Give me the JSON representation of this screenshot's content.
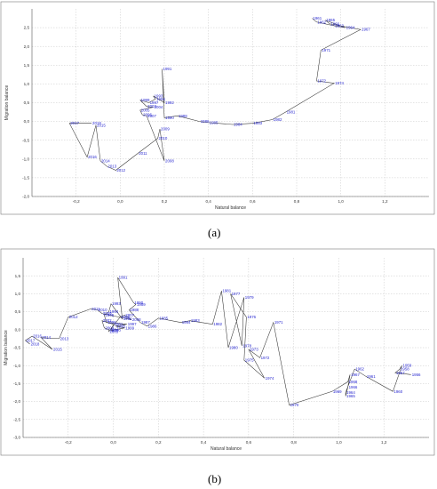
{
  "labels": {
    "a": "(a)",
    "b": "(b)"
  },
  "chart_data": [
    {
      "type": "line",
      "panel": "a",
      "xlabel": "Natural balance",
      "ylabel": "Migration balance",
      "xlim": [
        -0.4,
        1.4
      ],
      "ylim": [
        -2.0,
        3.0
      ],
      "xticks": [
        -0.2,
        0.0,
        0.2,
        0.4,
        0.6,
        0.8,
        1.0,
        1.2
      ],
      "xtick_labels": [
        "-0,2",
        "0,0",
        "0,2",
        "0,4",
        "0,6",
        "0,8",
        "1,0",
        "1,2"
      ],
      "yticks": [
        -2.0,
        -1.5,
        -1.0,
        -0.5,
        0.0,
        0.5,
        1.0,
        1.5,
        2.0,
        2.5
      ],
      "ytick_labels": [
        "-2,0",
        "-1,5",
        "-1,0",
        "-0,5",
        "0,0",
        "0,5",
        "1,0",
        "1,5",
        "2,0",
        "2,5"
      ],
      "grid": true,
      "points": [
        {
          "label": "1961",
          "x": 0.87,
          "y": 2.75
        },
        {
          "label": "1962",
          "x": 0.89,
          "y": 2.65
        },
        {
          "label": "1965",
          "x": 0.93,
          "y": 2.7
        },
        {
          "label": "1966",
          "x": 0.95,
          "y": 2.6
        },
        {
          "label": "1963",
          "x": 0.97,
          "y": 2.55
        },
        {
          "label": "1964",
          "x": 1.02,
          "y": 2.5
        },
        {
          "label": "1967",
          "x": 1.09,
          "y": 2.45
        },
        {
          "label": "1971",
          "x": 0.91,
          "y": 1.9
        },
        {
          "label": "1972",
          "x": 0.89,
          "y": 1.08
        },
        {
          "label": "1974",
          "x": 0.97,
          "y": 1.02
        },
        {
          "label": "1981",
          "x": 0.75,
          "y": 0.25
        },
        {
          "label": "1982",
          "x": 0.69,
          "y": 0.05
        },
        {
          "label": "1983",
          "x": 0.6,
          "y": -0.05
        },
        {
          "label": "1984",
          "x": 0.51,
          "y": -0.08
        },
        {
          "label": "1985",
          "x": 0.4,
          "y": -0.03
        },
        {
          "label": "1986",
          "x": 0.36,
          "y": 0.0
        },
        {
          "label": "1988",
          "x": 0.26,
          "y": 0.15
        },
        {
          "label": "1990",
          "x": 0.2,
          "y": 0.1
        },
        {
          "label": "1992",
          "x": 0.2,
          "y": 0.5
        },
        {
          "label": "1991",
          "x": 0.19,
          "y": 1.4
        },
        {
          "label": "1993",
          "x": 0.15,
          "y": 0.68
        },
        {
          "label": "1994",
          "x": 0.16,
          "y": 0.6
        },
        {
          "label": "1999",
          "x": 0.09,
          "y": 0.57
        },
        {
          "label": "1997",
          "x": 0.13,
          "y": 0.5
        },
        {
          "label": "2003",
          "x": 0.12,
          "y": 0.4
        },
        {
          "label": "2004",
          "x": 0.15,
          "y": 0.38
        },
        {
          "label": "2005",
          "x": 0.09,
          "y": 0.3
        },
        {
          "label": "2006",
          "x": 0.1,
          "y": 0.18
        },
        {
          "label": "2007",
          "x": 0.12,
          "y": 0.15
        },
        {
          "label": "2009",
          "x": 0.18,
          "y": -0.2
        },
        {
          "label": "2010",
          "x": 0.17,
          "y": -0.45
        },
        {
          "label": "2008",
          "x": 0.2,
          "y": -1.05
        },
        {
          "label": "2011",
          "x": 0.08,
          "y": -0.85
        },
        {
          "label": "2012",
          "x": -0.02,
          "y": -1.3
        },
        {
          "label": "2013",
          "x": -0.06,
          "y": -1.2
        },
        {
          "label": "2014",
          "x": -0.09,
          "y": -1.05
        },
        {
          "label": "2016",
          "x": -0.15,
          "y": -0.95
        },
        {
          "label": "2015",
          "x": -0.11,
          "y": -0.1
        },
        {
          "label": "2018",
          "x": -0.13,
          "y": -0.05
        },
        {
          "label": "2017",
          "x": -0.23,
          "y": -0.05
        }
      ]
    },
    {
      "type": "line",
      "panel": "b",
      "xlabel": "Natural balance",
      "ylabel": "Migration balance",
      "xlim": [
        -0.4,
        1.4
      ],
      "ylim": [
        -3.0,
        2.0
      ],
      "xticks": [
        -0.2,
        0.0,
        0.2,
        0.4,
        0.6,
        0.8,
        1.0,
        1.2
      ],
      "xtick_labels": [
        "-0,2",
        "0,0",
        "0,2",
        "0,4",
        "0,6",
        "0,8",
        "1,0",
        "1,2"
      ],
      "yticks": [
        -3.0,
        -2.5,
        -2.0,
        -1.5,
        -1.0,
        -0.5,
        0.0,
        0.5,
        1.0,
        1.5
      ],
      "ytick_labels": [
        "-3,0",
        "-2,5",
        "-2,0",
        "-1,5",
        "-1,0",
        "-0,5",
        "0,0",
        "0,5",
        "1,0",
        "1,5"
      ],
      "grid": true,
      "points": [
        {
          "label": "1959",
          "x": 1.28,
          "y": -1.0
        },
        {
          "label": "1958",
          "x": 1.27,
          "y": -1.1
        },
        {
          "label": "1956",
          "x": 1.32,
          "y": -1.25
        },
        {
          "label": "1957",
          "x": 1.25,
          "y": -1.2
        },
        {
          "label": "1960",
          "x": 1.24,
          "y": -1.72
        },
        {
          "label": "1961",
          "x": 1.12,
          "y": -1.3
        },
        {
          "label": "1962",
          "x": 1.07,
          "y": -1.1
        },
        {
          "label": "1967",
          "x": 1.05,
          "y": -1.25
        },
        {
          "label": "1968",
          "x": 1.04,
          "y": -1.45
        },
        {
          "label": "1966",
          "x": 1.04,
          "y": -1.6
        },
        {
          "label": "1964",
          "x": 1.03,
          "y": -1.75
        },
        {
          "label": "1965",
          "x": 1.03,
          "y": -1.85
        },
        {
          "label": "1969",
          "x": 0.97,
          "y": -1.72
        },
        {
          "label": "1970",
          "x": 0.78,
          "y": -2.1
        },
        {
          "label": "1974",
          "x": 0.67,
          "y": -1.35
        },
        {
          "label": "1972",
          "x": 0.65,
          "y": -0.78
        },
        {
          "label": "1971",
          "x": 0.71,
          "y": 0.2
        },
        {
          "label": "1973",
          "x": 0.6,
          "y": -0.55
        },
        {
          "label": "1975",
          "x": 0.58,
          "y": -0.85
        },
        {
          "label": "1978",
          "x": 0.57,
          "y": -0.45
        },
        {
          "label": "1980",
          "x": 0.51,
          "y": -0.5
        },
        {
          "label": "1976",
          "x": 0.59,
          "y": 0.35
        },
        {
          "label": "1979",
          "x": 0.58,
          "y": 0.9
        },
        {
          "label": "1977",
          "x": 0.52,
          "y": 1.0
        },
        {
          "label": "1981",
          "x": 0.48,
          "y": 1.08
        },
        {
          "label": "1982",
          "x": 0.44,
          "y": 0.15
        },
        {
          "label": "1983",
          "x": 0.34,
          "y": 0.25
        },
        {
          "label": "1984",
          "x": 0.3,
          "y": 0.2
        },
        {
          "label": "1985",
          "x": 0.2,
          "y": 0.32
        },
        {
          "label": "1986",
          "x": 0.15,
          "y": 0.1
        },
        {
          "label": "1987",
          "x": 0.12,
          "y": 0.2
        },
        {
          "label": "1988",
          "x": 0.07,
          "y": 0.55
        },
        {
          "label": "1989",
          "x": 0.1,
          "y": 0.7
        },
        {
          "label": "1990",
          "x": 0.09,
          "y": 0.75
        },
        {
          "label": "1991",
          "x": 0.02,
          "y": 1.45
        },
        {
          "label": "1992",
          "x": 0.04,
          "y": 0.3
        },
        {
          "label": "1993",
          "x": -0.01,
          "y": 0.72
        },
        {
          "label": "1994",
          "x": -0.02,
          "y": 0.5
        },
        {
          "label": "1995",
          "x": -0.04,
          "y": 0.4
        },
        {
          "label": "1996",
          "x": -0.03,
          "y": 0.2
        },
        {
          "label": "1997",
          "x": 0.06,
          "y": 0.15
        },
        {
          "label": "1998",
          "x": 0.01,
          "y": 0.1
        },
        {
          "label": "1999",
          "x": 0.05,
          "y": 0.05
        },
        {
          "label": "2000",
          "x": -0.01,
          "y": -0.02
        },
        {
          "label": "2001",
          "x": 0.0,
          "y": 0.15
        },
        {
          "label": "2002",
          "x": -0.05,
          "y": 0.25
        },
        {
          "label": "2003",
          "x": -0.04,
          "y": 0.05
        },
        {
          "label": "2004",
          "x": -0.02,
          "y": 0.0
        },
        {
          "label": "2005",
          "x": -0.02,
          "y": -0.05
        },
        {
          "label": "2006",
          "x": 0.03,
          "y": 0.35
        },
        {
          "label": "2007",
          "x": 0.05,
          "y": 0.4
        },
        {
          "label": "2008",
          "x": 0.08,
          "y": 0.28
        },
        {
          "label": "2009",
          "x": -0.05,
          "y": 0.45
        },
        {
          "label": "2010",
          "x": -0.07,
          "y": 0.55
        },
        {
          "label": "2011",
          "x": -0.1,
          "y": 0.58
        },
        {
          "label": "2012",
          "x": -0.2,
          "y": 0.35
        },
        {
          "label": "2013",
          "x": -0.24,
          "y": -0.25
        },
        {
          "label": "2014",
          "x": -0.32,
          "y": -0.22
        },
        {
          "label": "2015",
          "x": -0.27,
          "y": -0.55
        },
        {
          "label": "2016",
          "x": -0.36,
          "y": -0.18
        },
        {
          "label": "2017",
          "x": -0.39,
          "y": -0.3
        },
        {
          "label": "2018",
          "x": -0.37,
          "y": -0.4
        }
      ]
    }
  ]
}
